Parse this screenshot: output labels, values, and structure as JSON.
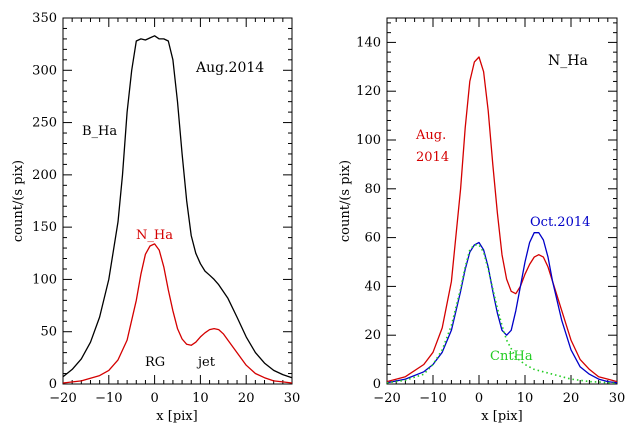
{
  "chart_data": [
    {
      "type": "line",
      "xlabel": "x [pix]",
      "ylabel": "count/(s pix)",
      "xlim": [
        -20,
        30
      ],
      "ylim": [
        0,
        350
      ],
      "xticks": [
        -20,
        -10,
        0,
        10,
        20,
        30
      ],
      "yticks": [
        0,
        50,
        100,
        150,
        200,
        250,
        300,
        350
      ],
      "grid": false,
      "series": [
        {
          "name": "B_Ha",
          "color": "#000000",
          "style": "solid",
          "x": [
            -20,
            -18,
            -16,
            -14,
            -12,
            -10,
            -8,
            -7,
            -6,
            -5,
            -4,
            -3,
            -2,
            -1,
            0,
            1,
            2,
            3,
            4,
            5,
            6,
            7,
            8,
            9,
            10,
            11,
            12,
            13,
            14,
            16,
            18,
            20,
            22,
            24,
            26,
            28,
            30
          ],
          "y": [
            7,
            14,
            24,
            40,
            64,
            100,
            155,
            200,
            260,
            300,
            328,
            330,
            329,
            331,
            333,
            330,
            330,
            328,
            310,
            270,
            220,
            175,
            142,
            125,
            115,
            108,
            104,
            100,
            95,
            82,
            64,
            45,
            30,
            20,
            13,
            9,
            6
          ]
        },
        {
          "name": "N_Ha",
          "color": "#d40000",
          "style": "solid",
          "x": [
            -20,
            -16,
            -12,
            -10,
            -8,
            -6,
            -4,
            -3,
            -2,
            -1,
            0,
            1,
            2,
            3,
            4,
            5,
            6,
            7,
            8,
            9,
            10,
            11,
            12,
            13,
            14,
            15,
            16,
            18,
            20,
            22,
            24,
            26,
            28,
            30
          ],
          "y": [
            1,
            3,
            8,
            13,
            23,
            42,
            80,
            105,
            124,
            132,
            134,
            128,
            112,
            90,
            70,
            53,
            43,
            38,
            37,
            40,
            45,
            49,
            52,
            53,
            52,
            48,
            42,
            30,
            18,
            10,
            6,
            3,
            2,
            1
          ]
        }
      ],
      "annotations": [
        "Aug.2014",
        "B_Ha",
        "N_Ha",
        "RG",
        "jet"
      ]
    },
    {
      "type": "line",
      "xlabel": "x [pix]",
      "ylabel": "count/(s pix)",
      "xlim": [
        -20,
        30
      ],
      "ylim": [
        0,
        150
      ],
      "xticks": [
        -20,
        -10,
        0,
        10,
        20,
        30
      ],
      "yticks": [
        0,
        20,
        40,
        60,
        80,
        100,
        120,
        140
      ],
      "grid": false,
      "series": [
        {
          "name": "Aug. 2014",
          "color": "#d40000",
          "style": "solid",
          "x": [
            -20,
            -16,
            -12,
            -10,
            -8,
            -6,
            -4,
            -3,
            -2,
            -1,
            0,
            1,
            2,
            3,
            4,
            5,
            6,
            7,
            8,
            9,
            10,
            11,
            12,
            13,
            14,
            15,
            16,
            18,
            20,
            22,
            24,
            26,
            28,
            30
          ],
          "y": [
            1,
            3,
            8,
            13,
            23,
            42,
            80,
            105,
            124,
            132,
            134,
            128,
            112,
            90,
            70,
            53,
            43,
            38,
            37,
            40,
            45,
            49,
            52,
            53,
            52,
            48,
            42,
            30,
            18,
            10,
            6,
            3,
            2,
            1
          ]
        },
        {
          "name": "Oct.2014",
          "color": "#0000c8",
          "style": "solid",
          "x": [
            -20,
            -16,
            -12,
            -10,
            -8,
            -6,
            -4,
            -3,
            -2,
            -1,
            0,
            1,
            2,
            3,
            4,
            5,
            6,
            7,
            8,
            9,
            10,
            11,
            12,
            13,
            14,
            15,
            16,
            18,
            20,
            22,
            24,
            26,
            28,
            30
          ],
          "y": [
            0.5,
            2,
            5,
            8,
            13,
            22,
            38,
            47,
            54,
            57,
            58,
            55,
            48,
            38,
            29,
            22,
            20,
            22,
            30,
            40,
            50,
            58,
            62,
            62,
            59,
            52,
            42,
            26,
            14,
            7,
            4,
            2,
            1,
            0.5
          ]
        },
        {
          "name": "CntHa",
          "color": "#22cc22",
          "style": "dotted",
          "x": [
            -20,
            -16,
            -12,
            -10,
            -8,
            -6,
            -4,
            -3,
            -2,
            -1,
            0,
            1,
            2,
            3,
            4,
            5,
            6,
            8,
            10,
            12,
            14,
            16,
            18,
            20,
            22,
            24,
            26,
            28,
            30
          ],
          "y": [
            0.5,
            1.5,
            4,
            8,
            14,
            24,
            39,
            48,
            55,
            57,
            57,
            54,
            47,
            39,
            31,
            24,
            18,
            11,
            8,
            6,
            5,
            4,
            3,
            2,
            1.5,
            1,
            0.8,
            0.5,
            0.3
          ]
        }
      ],
      "annotations": [
        "N_Ha",
        "Aug.",
        "2014",
        "Oct.2014",
        "CntHa"
      ]
    }
  ],
  "labels": {
    "left": {
      "title": "Aug.2014",
      "b_ha": "B_Ha",
      "n_ha": "N_Ha",
      "rg": "RG",
      "jet": "jet"
    },
    "right": {
      "title": "N_Ha",
      "aug_line1": "Aug.",
      "aug_line2": "2014",
      "oct": "Oct.2014",
      "cnt": "CntHa"
    }
  }
}
